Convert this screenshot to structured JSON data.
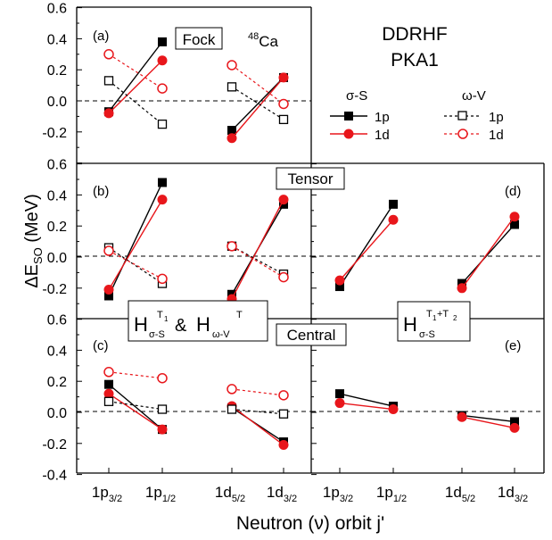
{
  "figure": {
    "ylabel": "ΔE",
    "ylabel_sub": "SO",
    "ylabel_unit": " (MeV)",
    "xlabel": "Neutron (ν) orbit j'",
    "annotation_main": "DDRHF",
    "annotation_sub": "PKA1",
    "nucleus_mass": "48",
    "nucleus_symbol": "Ca",
    "legend": {
      "header_solid": "σ-S",
      "header_dashed": "ω-V",
      "row1": "1p",
      "row2": "1d"
    },
    "xticks": [
      {
        "main": "1p",
        "sub": "3/2"
      },
      {
        "main": "1p",
        "sub": "1/2"
      },
      {
        "main": "1d",
        "sub": "5/2"
      },
      {
        "main": "1d",
        "sub": "3/2"
      }
    ],
    "central_label": {
      "H": "H",
      "T1": "T",
      "T1sub": "1",
      "sub1": "σ-S",
      "amp": "&",
      "T": "T",
      "sub2": "ω-V"
    },
    "e_label": {
      "H": "H",
      "sup": "T",
      "sup1": "1",
      "plus": "+T",
      "sup2": "2",
      "sub": "σ-S"
    }
  },
  "colors": {
    "black": "#000000",
    "red": "#e8161b"
  },
  "chart_data": [
    {
      "type": "line",
      "panel": "a",
      "panel_label": "(a)",
      "title": "Fock",
      "categories": [
        "1p3/2",
        "1p1/2",
        "1d5/2",
        "1d3/2"
      ],
      "ylim": [
        -0.4,
        0.6
      ],
      "yticks": [
        "-0.4",
        "-0.2",
        "0.0",
        "0.2",
        "0.4",
        "0.6"
      ],
      "series": [
        {
          "name": "σ-S 1p",
          "points": [
            [
              0,
              -0.07
            ],
            [
              1,
              0.38
            ]
          ],
          "color": "#000000",
          "marker": "square",
          "filled": true,
          "dashed": false
        },
        {
          "name": "σ-S 1d",
          "points": [
            [
              0,
              -0.08
            ],
            [
              1,
              0.26
            ]
          ],
          "color": "#e8161b",
          "marker": "circle",
          "filled": true,
          "dashed": false
        },
        {
          "name": "ω-V 1p",
          "points": [
            [
              0,
              0.13
            ],
            [
              1,
              -0.15
            ]
          ],
          "color": "#000000",
          "marker": "square",
          "filled": false,
          "dashed": true
        },
        {
          "name": "ω-V 1d",
          "points": [
            [
              0,
              0.3
            ],
            [
              1,
              0.08
            ]
          ],
          "color": "#e8161b",
          "marker": "circle",
          "filled": false,
          "dashed": true
        },
        {
          "name": "σ-S 1p",
          "points": [
            [
              2,
              -0.19
            ],
            [
              3,
              0.15
            ]
          ],
          "color": "#000000",
          "marker": "square",
          "filled": true,
          "dashed": false
        },
        {
          "name": "σ-S 1d",
          "points": [
            [
              2,
              -0.24
            ],
            [
              3,
              0.15
            ]
          ],
          "color": "#e8161b",
          "marker": "circle",
          "filled": true,
          "dashed": false
        },
        {
          "name": "ω-V 1p",
          "points": [
            [
              2,
              0.09
            ],
            [
              3,
              -0.12
            ]
          ],
          "color": "#000000",
          "marker": "square",
          "filled": false,
          "dashed": true
        },
        {
          "name": "ω-V 1d",
          "points": [
            [
              2,
              0.23
            ],
            [
              3,
              -0.02
            ]
          ],
          "color": "#e8161b",
          "marker": "circle",
          "filled": false,
          "dashed": true
        }
      ]
    },
    {
      "type": "line",
      "panel": "b",
      "panel_label": "(b)",
      "title": "Tensor",
      "categories": [
        "1p3/2",
        "1p1/2",
        "1d5/2",
        "1d3/2"
      ],
      "ylim": [
        -0.4,
        0.6
      ],
      "yticks": [
        "-0.4",
        "-0.2",
        "0.0",
        "0.2",
        "0.4",
        "0.6"
      ],
      "series": [
        {
          "name": "σ-S 1p",
          "points": [
            [
              0,
              -0.25
            ],
            [
              1,
              0.48
            ]
          ],
          "color": "#000000",
          "marker": "square",
          "filled": true,
          "dashed": false
        },
        {
          "name": "σ-S 1d",
          "points": [
            [
              0,
              -0.21
            ],
            [
              1,
              0.37
            ]
          ],
          "color": "#e8161b",
          "marker": "circle",
          "filled": true,
          "dashed": false
        },
        {
          "name": "ω-V 1p",
          "points": [
            [
              0,
              0.06
            ],
            [
              1,
              -0.17
            ]
          ],
          "color": "#000000",
          "marker": "square",
          "filled": false,
          "dashed": true
        },
        {
          "name": "ω-V 1d",
          "points": [
            [
              0,
              0.04
            ],
            [
              1,
              -0.14
            ]
          ],
          "color": "#e8161b",
          "marker": "circle",
          "filled": false,
          "dashed": true
        },
        {
          "name": "σ-S 1p",
          "points": [
            [
              2,
              -0.24
            ],
            [
              3,
              0.34
            ]
          ],
          "color": "#000000",
          "marker": "square",
          "filled": true,
          "dashed": false
        },
        {
          "name": "σ-S 1d",
          "points": [
            [
              2,
              -0.27
            ],
            [
              3,
              0.37
            ]
          ],
          "color": "#e8161b",
          "marker": "circle",
          "filled": true,
          "dashed": false
        },
        {
          "name": "ω-V 1p",
          "points": [
            [
              2,
              0.07
            ],
            [
              3,
              -0.11
            ]
          ],
          "color": "#000000",
          "marker": "square",
          "filled": false,
          "dashed": true
        },
        {
          "name": "ω-V 1d",
          "points": [
            [
              2,
              0.07
            ],
            [
              3,
              -0.13
            ]
          ],
          "color": "#e8161b",
          "marker": "circle",
          "filled": false,
          "dashed": true
        }
      ]
    },
    {
      "type": "line",
      "panel": "c",
      "panel_label": "(c)",
      "title": "Central",
      "categories": [
        "1p3/2",
        "1p1/2",
        "1d5/2",
        "1d3/2"
      ],
      "ylim": [
        -0.4,
        0.6
      ],
      "yticks": [
        "-0.4",
        "-0.2",
        "0.0",
        "0.2",
        "0.4",
        "0.6"
      ],
      "series": [
        {
          "name": "σ-S 1p",
          "points": [
            [
              0,
              0.18
            ],
            [
              1,
              -0.11
            ]
          ],
          "color": "#000000",
          "marker": "square",
          "filled": true,
          "dashed": false
        },
        {
          "name": "σ-S 1d",
          "points": [
            [
              0,
              0.12
            ],
            [
              1,
              -0.11
            ]
          ],
          "color": "#e8161b",
          "marker": "circle",
          "filled": true,
          "dashed": false
        },
        {
          "name": "ω-V 1p",
          "points": [
            [
              0,
              0.07
            ],
            [
              1,
              0.02
            ]
          ],
          "color": "#000000",
          "marker": "square",
          "filled": false,
          "dashed": true
        },
        {
          "name": "ω-V 1d",
          "points": [
            [
              0,
              0.26
            ],
            [
              1,
              0.22
            ]
          ],
          "color": "#e8161b",
          "marker": "circle",
          "filled": false,
          "dashed": true
        },
        {
          "name": "σ-S 1p",
          "points": [
            [
              2,
              0.03
            ],
            [
              3,
              -0.19
            ]
          ],
          "color": "#000000",
          "marker": "square",
          "filled": true,
          "dashed": false
        },
        {
          "name": "σ-S 1d",
          "points": [
            [
              2,
              0.04
            ],
            [
              3,
              -0.21
            ]
          ],
          "color": "#e8161b",
          "marker": "circle",
          "filled": true,
          "dashed": false
        },
        {
          "name": "ω-V 1p",
          "points": [
            [
              2,
              0.02
            ],
            [
              3,
              -0.01
            ]
          ],
          "color": "#000000",
          "marker": "square",
          "filled": false,
          "dashed": true
        },
        {
          "name": "ω-V 1d",
          "points": [
            [
              2,
              0.15
            ],
            [
              3,
              0.11
            ]
          ],
          "color": "#e8161b",
          "marker": "circle",
          "filled": false,
          "dashed": true
        }
      ]
    },
    {
      "type": "line",
      "panel": "d",
      "panel_label": "(d)",
      "title": "",
      "categories": [
        "1p3/2",
        "1p1/2",
        "1d5/2",
        "1d3/2"
      ],
      "ylim": [
        -0.4,
        0.6
      ],
      "series": [
        {
          "name": "σ-S 1p",
          "points": [
            [
              0,
              -0.19
            ],
            [
              1,
              0.34
            ]
          ],
          "color": "#000000",
          "marker": "square",
          "filled": true,
          "dashed": false
        },
        {
          "name": "σ-S 1d",
          "points": [
            [
              0,
              -0.15
            ],
            [
              1,
              0.24
            ]
          ],
          "color": "#e8161b",
          "marker": "circle",
          "filled": true,
          "dashed": false
        },
        {
          "name": "σ-S 1p",
          "points": [
            [
              2,
              -0.17
            ],
            [
              3,
              0.21
            ]
          ],
          "color": "#000000",
          "marker": "square",
          "filled": true,
          "dashed": false
        },
        {
          "name": "σ-S 1d",
          "points": [
            [
              2,
              -0.2
            ],
            [
              3,
              0.26
            ]
          ],
          "color": "#e8161b",
          "marker": "circle",
          "filled": true,
          "dashed": false
        }
      ]
    },
    {
      "type": "line",
      "panel": "e",
      "panel_label": "(e)",
      "title": "",
      "categories": [
        "1p3/2",
        "1p1/2",
        "1d5/2",
        "1d3/2"
      ],
      "ylim": [
        -0.4,
        0.6
      ],
      "series": [
        {
          "name": "σ-S 1p",
          "points": [
            [
              0,
              0.12
            ],
            [
              1,
              0.04
            ]
          ],
          "color": "#000000",
          "marker": "square",
          "filled": true,
          "dashed": false
        },
        {
          "name": "σ-S 1d",
          "points": [
            [
              0,
              0.06
            ],
            [
              1,
              0.02
            ]
          ],
          "color": "#e8161b",
          "marker": "circle",
          "filled": true,
          "dashed": false
        },
        {
          "name": "σ-S 1p",
          "points": [
            [
              2,
              -0.02
            ],
            [
              3,
              -0.06
            ]
          ],
          "color": "#000000",
          "marker": "square",
          "filled": true,
          "dashed": false
        },
        {
          "name": "σ-S 1d",
          "points": [
            [
              2,
              -0.03
            ],
            [
              3,
              -0.1
            ]
          ],
          "color": "#e8161b",
          "marker": "circle",
          "filled": true,
          "dashed": false
        }
      ]
    }
  ]
}
